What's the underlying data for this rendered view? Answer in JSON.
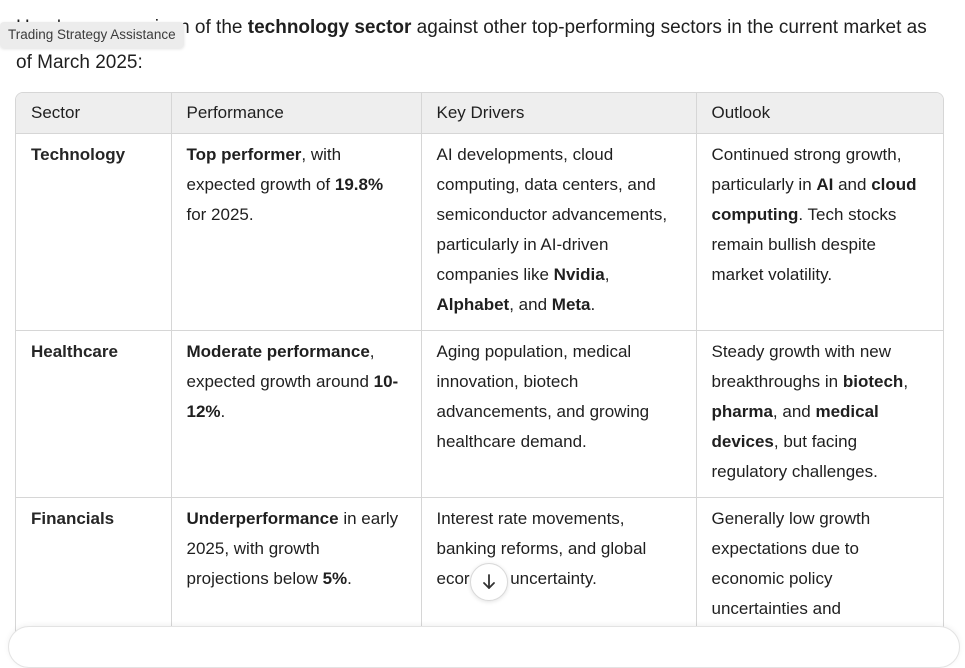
{
  "intro": {
    "prefix": "Here's a comparison of the ",
    "bold": "technology sector",
    "suffix": " against other top-performing sectors in the current market as of March 2025:"
  },
  "tooltip": "Trading Strategy Assistance",
  "table": {
    "headers": [
      "Sector",
      "Performance",
      "Key Drivers",
      "Outlook"
    ],
    "rows": [
      {
        "sector": "Technology",
        "performance": {
          "b1": "Top performer",
          "t1": ", with expected growth of ",
          "b2": "19.8%",
          "t2": " for 2025."
        },
        "drivers": {
          "t1": "AI developments, cloud computing, data centers, and semiconductor advancements, particularly in AI-driven companies like ",
          "b1": "Nvidia",
          "t2": ", ",
          "b2": "Alphabet",
          "t3": ", and ",
          "b3": "Meta",
          "t4": "."
        },
        "outlook": {
          "t1": "Continued strong growth, particularly in ",
          "b1": "AI",
          "t2": " and ",
          "b2": "cloud computing",
          "t3": ". Tech stocks remain bullish despite market volatility."
        }
      },
      {
        "sector": "Healthcare",
        "performance": {
          "b1": "Moderate performance",
          "t1": ", expected growth around ",
          "b2": "10-12%",
          "t2": "."
        },
        "drivers": {
          "t1": "Aging population, medical innovation, biotech advancements, and growing healthcare demand."
        },
        "outlook": {
          "t1": "Steady growth with new breakthroughs in ",
          "b1": "biotech",
          "t2": ", ",
          "b2": "pharma",
          "t3": ", and ",
          "b3": "medical devices",
          "t4": ", but facing regulatory challenges."
        }
      },
      {
        "sector": "Financials",
        "performance": {
          "b1": "Underperformance",
          "t1": " in early 2025, with growth projections below ",
          "b2": "5%",
          "t2": "."
        },
        "drivers": {
          "t1": "Interest rate movements, banking reforms, and global ecor",
          "t2": "ic uncertainty."
        },
        "outlook": {
          "t1": "Generally low growth expectations due to economic policy uncertainties and"
        }
      }
    ]
  },
  "icons": {
    "scroll_down": "arrow-down-icon"
  }
}
